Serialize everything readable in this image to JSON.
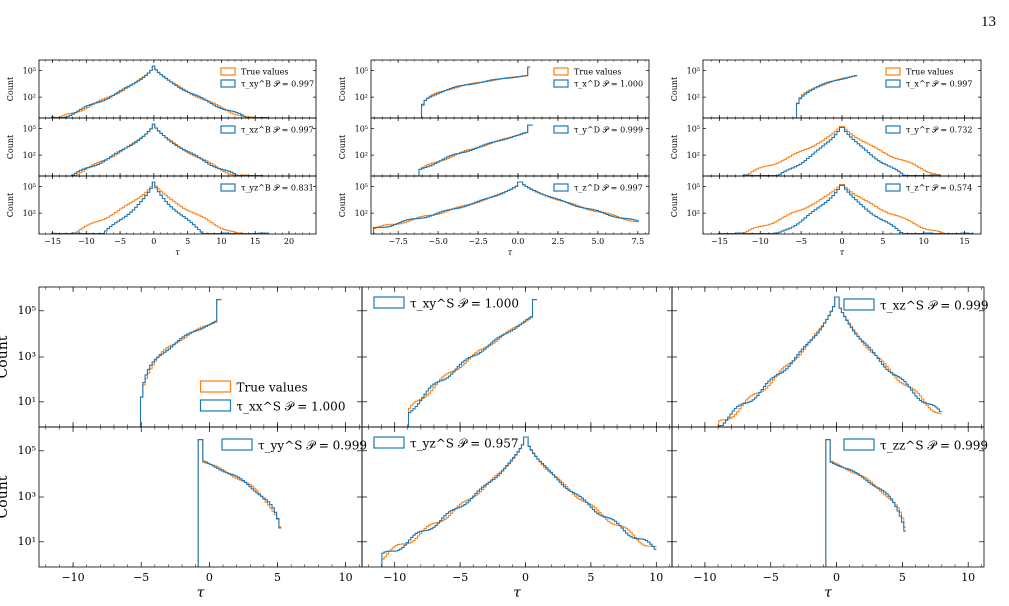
{
  "page_number": "13",
  "colors": {
    "true_values": "#ff7f0e",
    "predicted": "#1f77b4"
  },
  "chart_data": [
    {
      "type": "histogram",
      "group": "B",
      "position": "top-left",
      "xlim": [
        -17,
        24
      ],
      "xticks": [
        -15,
        -10,
        -5,
        0,
        5,
        10,
        15,
        20
      ],
      "xlabel": "τ",
      "yscale": "log",
      "panels": [
        {
          "ylabel": "Count",
          "yticks": [
            "10⁵",
            "10²"
          ],
          "legend": [
            {
              "name": "True values",
              "color": "#ff7f0e"
            },
            {
              "name": "τ_xy^B  𝒫 = 0.997",
              "color": "#1f77b4"
            }
          ],
          "shape": {
            "type": "peak",
            "peak": 0,
            "w_left": 4.5,
            "w_right": 4.5,
            "left": -15,
            "right": 17
          }
        },
        {
          "ylabel": "Count",
          "yticks": [
            "10⁵",
            "10²"
          ],
          "legend": [
            {
              "name": "τ_xz^B  𝒫 = 0.997",
              "color": "#1f77b4"
            }
          ],
          "shape": {
            "type": "peak",
            "peak": 0,
            "w_left": 4,
            "w_right": 4,
            "left": -12,
            "right": 16
          }
        },
        {
          "ylabel": "Count",
          "yticks": [
            "10⁵",
            "10²"
          ],
          "legend": [
            {
              "name": "τ_yz^B  𝒫 = 0.831",
              "color": "#1f77b4"
            }
          ],
          "shape": {
            "type": "peak",
            "peak": 0,
            "w_left": 2.5,
            "w_right": 2.5,
            "left": -15,
            "right": 17,
            "orange_w": 4
          }
        }
      ]
    },
    {
      "type": "histogram",
      "group": "D",
      "position": "top-middle",
      "xlim": [
        -9.2,
        8.2
      ],
      "xticks": [
        "−7.5",
        "−5.0",
        "−2.5",
        "0.0",
        "2.5",
        "5.0",
        "7.5"
      ],
      "xlabel": "τ",
      "yscale": "log",
      "panels": [
        {
          "ylabel": "Count",
          "yticks": [
            "10⁵",
            "10²"
          ],
          "legend": [
            {
              "name": "True values",
              "color": "#ff7f0e"
            },
            {
              "name": "τ_x^D  𝒫 = 1.000",
              "color": "#1f77b4"
            }
          ],
          "shape": {
            "type": "concave_left",
            "left": -6,
            "right": 0.8
          }
        },
        {
          "ylabel": "Count",
          "yticks": [
            "10⁵",
            "10²"
          ],
          "legend": [
            {
              "name": "τ_y^D  𝒫 = 0.999",
              "color": "#1f77b4"
            }
          ],
          "shape": {
            "type": "linear_left",
            "left": -6.2,
            "right": 0.9
          }
        },
        {
          "ylabel": "Count",
          "yticks": [
            "10⁵",
            "10²"
          ],
          "legend": [
            {
              "name": "τ_z^D  𝒫 = 0.997",
              "color": "#1f77b4"
            }
          ],
          "shape": {
            "type": "peak",
            "peak": 0.2,
            "w_left": 3.5,
            "w_right": 3.5,
            "left": -9,
            "right": 7.5
          }
        }
      ]
    },
    {
      "type": "histogram",
      "group": "r",
      "position": "top-right",
      "xlim": [
        -17,
        17
      ],
      "xticks": [
        -15,
        -10,
        -5,
        0,
        5,
        10,
        15
      ],
      "xlabel": "τ",
      "yscale": "log",
      "panels": [
        {
          "ylabel": "Count",
          "yticks": [
            "10⁵",
            "10²"
          ],
          "legend": [
            {
              "name": "True values",
              "color": "#ff7f0e"
            },
            {
              "name": "τ_x^r  𝒫 = 0.997",
              "color": "#1f77b4"
            }
          ],
          "shape": {
            "type": "concave_left",
            "left": -5.5,
            "right": 2
          }
        },
        {
          "ylabel": "Count",
          "yticks": [
            "10⁵",
            "10²"
          ],
          "legend": [
            {
              "name": "τ_y^r  𝒫 = 0.732",
              "color": "#1f77b4"
            }
          ],
          "shape": {
            "type": "peak",
            "peak": 0,
            "w_left": 2.5,
            "w_right": 2.5,
            "left": -12,
            "right": 12,
            "orange_w": 4
          }
        },
        {
          "ylabel": "Count",
          "yticks": [
            "10⁵",
            "10²"
          ],
          "legend": [
            {
              "name": "τ_z^r  𝒫 = 0.574",
              "color": "#1f77b4"
            }
          ],
          "shape": {
            "type": "peak",
            "peak": 0,
            "w_left": 2.5,
            "w_right": 2.5,
            "left": -15,
            "right": 16,
            "orange_w": 4
          }
        }
      ]
    },
    {
      "type": "histogram",
      "group": "S",
      "position": "bottom-grid",
      "xlim": [
        -12.5,
        11.2
      ],
      "xticks": [
        "−10",
        "−5",
        "0",
        "5",
        "10"
      ],
      "xlabel": "τ",
      "yscale": "log",
      "panels": [
        {
          "ylabel": "Count",
          "yticks": [
            "10⁵",
            "10³",
            "10¹"
          ],
          "legend": [
            {
              "name": "True values",
              "color": "#ff7f0e"
            },
            {
              "name": "τ_xx^S  𝒫 = 1.000",
              "color": "#1f77b4"
            }
          ],
          "shape": {
            "type": "concave_left",
            "left": -5,
            "right": 0.8
          }
        },
        {
          "ylabel": "",
          "yticks": [],
          "legend": [
            {
              "name": "τ_xy^S  𝒫 = 1.000",
              "color": "#1f77b4"
            }
          ],
          "shape": {
            "type": "linear_left",
            "left": -9,
            "right": 0.8
          }
        },
        {
          "ylabel": "",
          "yticks": [],
          "legend": [
            {
              "name": "τ_xz^S  𝒫 = 0.999",
              "color": "#1f77b4"
            }
          ],
          "shape": {
            "type": "peak",
            "peak": 0,
            "w_left": 3,
            "w_right": 3,
            "left": -9,
            "right": 8
          }
        },
        {
          "ylabel": "Count",
          "yticks": [
            "10⁵",
            "10³",
            "10¹"
          ],
          "legend": [
            {
              "name": "τ_yy^S  𝒫 = 0.999",
              "color": "#1f77b4"
            }
          ],
          "shape": {
            "type": "concave_right",
            "left": -0.8,
            "right": 5.3
          }
        },
        {
          "ylabel": "",
          "yticks": [],
          "legend": [
            {
              "name": "τ_yz^S  𝒫 = 0.957",
              "color": "#1f77b4"
            }
          ],
          "shape": {
            "type": "peak",
            "peak": 0,
            "w_left": 4,
            "w_right": 4,
            "left": -11,
            "right": 10
          }
        },
        {
          "ylabel": "",
          "yticks": [],
          "legend": [
            {
              "name": "τ_zz^S  𝒫 = 0.999",
              "color": "#1f77b4"
            }
          ],
          "shape": {
            "type": "concave_right",
            "left": -0.8,
            "right": 5.3
          }
        }
      ]
    }
  ]
}
